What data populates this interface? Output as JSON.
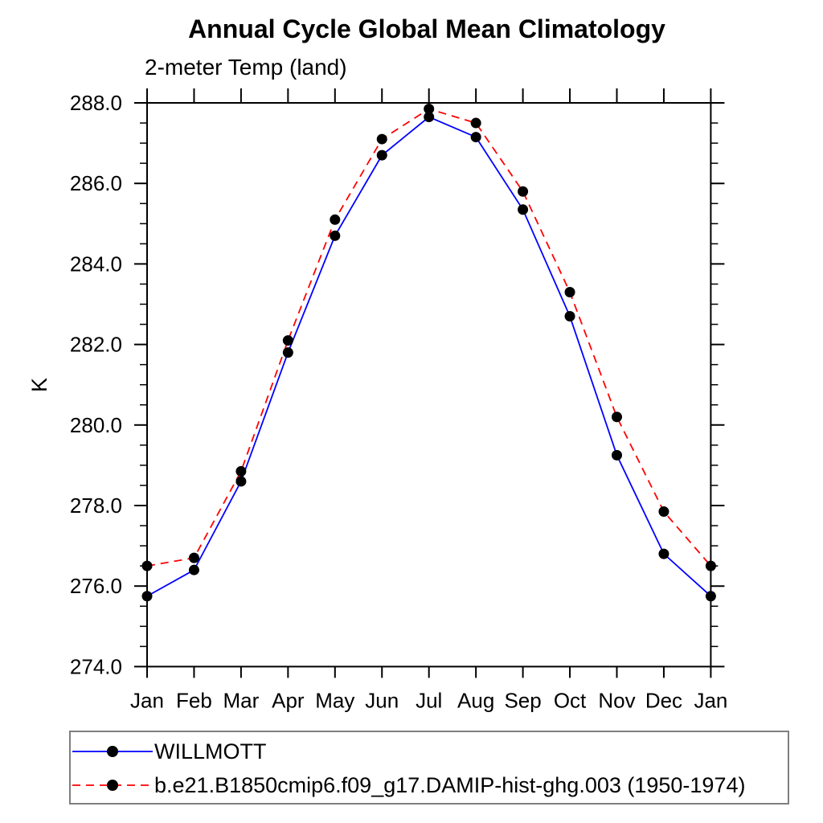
{
  "chart_data": {
    "type": "line",
    "title": "Annual Cycle Global Mean Climatology",
    "subtitle": "2-meter Temp (land)",
    "ylabel": "K",
    "categories": [
      "Jan",
      "Feb",
      "Mar",
      "Apr",
      "May",
      "Jun",
      "Jul",
      "Aug",
      "Sep",
      "Oct",
      "Nov",
      "Dec",
      "Jan"
    ],
    "ylim": [
      274,
      288
    ],
    "ytick_labels": [
      "274.0",
      "276.0",
      "278.0",
      "280.0",
      "282.0",
      "284.0",
      "286.0",
      "288.0"
    ],
    "ytick_interval": 2.0,
    "yminor_interval": 0.5,
    "grid": false,
    "legend_position": "bottom-left-box",
    "series": [
      {
        "name": "WILLMOTT",
        "color": "#0000ff",
        "line_style": "solid",
        "marker": "filled-circle",
        "marker_color": "#000000",
        "values": [
          275.75,
          276.4,
          278.6,
          281.8,
          284.7,
          286.7,
          287.65,
          287.15,
          285.35,
          282.7,
          279.25,
          276.8,
          275.75
        ]
      },
      {
        "name": "b.e21.B1850cmip6.f09_g17.DAMIP-hist-ghg.003 (1950-1974)",
        "color": "#ff0000",
        "line_style": "dashed",
        "marker": "filled-circle",
        "marker_color": "#000000",
        "values": [
          276.5,
          276.7,
          278.85,
          282.1,
          285.1,
          287.1,
          287.85,
          287.5,
          285.8,
          283.3,
          280.2,
          277.85,
          276.5
        ]
      }
    ],
    "colors": {
      "axis": "#000000",
      "text": "#000000",
      "legend_border": "#7f7f7f",
      "background": "#ffffff"
    }
  }
}
